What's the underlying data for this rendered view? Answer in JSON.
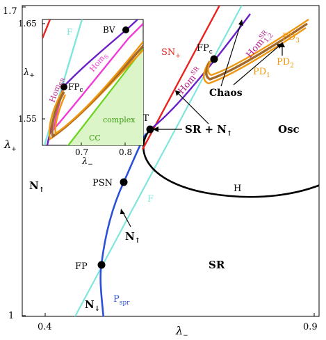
{
  "axes": {
    "x_title": "λ",
    "x_title_sub": "−",
    "y_title": "λ",
    "y_title_sub": "+",
    "x_ticks": [
      "0.4",
      "0.9"
    ],
    "y_ticks": [
      "1",
      "1.7"
    ]
  },
  "regions": {
    "n_up": "N",
    "n_up_arrow": "↑",
    "n_down": "N",
    "n_down_arrow": "↓",
    "n_up_lower": "N",
    "n_up_lower_arrow": "↑",
    "sr": "SR",
    "sr_n_up": "SR + N",
    "sr_n_up_arrow": "↑",
    "osc": "Osc",
    "chaos": "Chaos"
  },
  "points": {
    "fp": "FP",
    "psn": "PSN",
    "bt": "BT",
    "fp_c": "FP",
    "fp_c_sub": "c",
    "bv": "BV"
  },
  "curves": {
    "h": "H",
    "f": "F",
    "p_spr": "P",
    "p_spr_sub": "spr",
    "sn_plus": "SN",
    "sn_plus_sub": "+",
    "hom_sr": "Hom",
    "hom_sr_sup": "SR",
    "hom_12": "Hom",
    "hom_12_sup": "SR",
    "hom_12_sub": "1,2",
    "pd1": "PD",
    "pd1_sub": "1",
    "pd2": "PD",
    "pd2_sub": "2",
    "pd3": "PD",
    "pd3_sub": "3"
  },
  "inset": {
    "x_title": "λ",
    "x_title_sub": "−",
    "y_title": "λ",
    "y_title_sub": "+",
    "x_ticks": [
      "0.7",
      "0.8"
    ],
    "y_ticks": [
      "1.55",
      "1.65"
    ],
    "f": "F",
    "hom_sr": "Hom",
    "hom_sr_sub": "SR",
    "hom_s": "Hom",
    "hom_s_sub": "S",
    "fp_c": "FP",
    "fp_c_sub": "c",
    "bv": "BV",
    "complex": "complex",
    "cc": "CC"
  },
  "colors": {
    "black": "#000000",
    "blue": "#2a4fd8",
    "cyan": "#7fe6dc",
    "red": "#e8231e",
    "purple": "#6a1fc8",
    "orange": "#f0960f",
    "brown": "#a3692a",
    "magenta": "#f23ad6",
    "green": "#6bd41e",
    "green_fill": "#dcf5c8"
  }
}
